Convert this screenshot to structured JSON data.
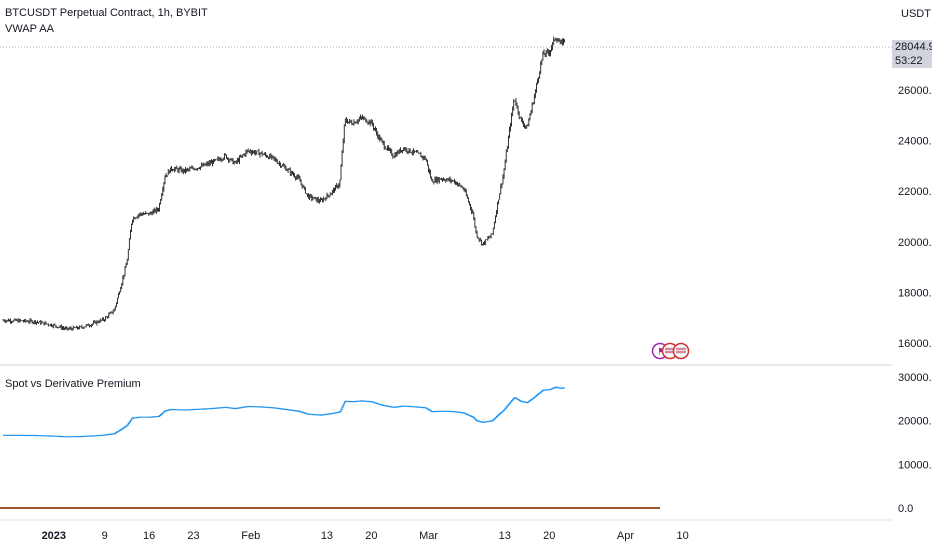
{
  "symbol_title": "BTCUSDT Perpetual Contract, 1h, BYBIT",
  "overlay_indicator": "VWAP AA",
  "currency": "USDT",
  "last_price": "28044.9",
  "countdown": "53:22",
  "colors": {
    "candles": "#000000",
    "premium_line": "#2196f3",
    "zero_line": "#a0522d",
    "grid": "#9598a1",
    "axis_text": "#131722",
    "price_tag_bg": "#d1d4dc"
  },
  "icons": [
    "purple-flag-icon",
    "us-flag-icon",
    "us-flag-icon"
  ],
  "chart_data": [
    {
      "type": "candlestick",
      "title": "BTCUSDT Perpetual Contract, 1h, BYBIT",
      "ylabel": "USDT",
      "ylim": [
        15200,
        29400
      ],
      "yticks": [
        "16000.0",
        "18000.0",
        "20000.0",
        "22000.0",
        "24000.0",
        "26000.0"
      ],
      "xticks": [
        "2023",
        "9",
        "16",
        "23",
        "Feb",
        "13",
        "20",
        "Mar",
        "13",
        "20",
        "Apr",
        "10"
      ],
      "xtick_days": [
        0,
        8,
        15,
        22,
        31,
        43,
        50,
        59,
        71,
        78,
        90,
        99
      ],
      "x_day_range": [
        -8,
        117
      ],
      "series_days": [
        -8,
        80.5
      ],
      "close_path": [
        [
          -8,
          16900
        ],
        [
          -3,
          16850
        ],
        [
          0,
          16700
        ],
        [
          2,
          16550
        ],
        [
          4,
          16600
        ],
        [
          6,
          16750
        ],
        [
          8,
          16950
        ],
        [
          9.5,
          17300
        ],
        [
          10.5,
          18200
        ],
        [
          11.5,
          19200
        ],
        [
          12.3,
          20900
        ],
        [
          13.5,
          21100
        ],
        [
          15,
          21100
        ],
        [
          16.5,
          21300
        ],
        [
          17.5,
          22600
        ],
        [
          18.5,
          22900
        ],
        [
          20.5,
          22800
        ],
        [
          22,
          22900
        ],
        [
          23.5,
          23000
        ],
        [
          25.5,
          23200
        ],
        [
          27,
          23400
        ],
        [
          28.5,
          23100
        ],
        [
          30.5,
          23600
        ],
        [
          32.5,
          23500
        ],
        [
          34.5,
          23300
        ],
        [
          36.5,
          22900
        ],
        [
          38.5,
          22500
        ],
        [
          40,
          21800
        ],
        [
          42,
          21600
        ],
        [
          43.5,
          21900
        ],
        [
          45,
          22300
        ],
        [
          45.8,
          24800
        ],
        [
          47,
          24700
        ],
        [
          48.5,
          24900
        ],
        [
          50,
          24700
        ],
        [
          51,
          24200
        ],
        [
          52,
          23800
        ],
        [
          53.5,
          23400
        ],
        [
          55,
          23700
        ],
        [
          57,
          23500
        ],
        [
          58.5,
          23300
        ],
        [
          59.5,
          22400
        ],
        [
          61,
          22500
        ],
        [
          63,
          22400
        ],
        [
          64.5,
          22100
        ],
        [
          66,
          21100
        ],
        [
          66.5,
          20300
        ],
        [
          67.5,
          19900
        ],
        [
          69,
          20300
        ],
        [
          70,
          21700
        ],
        [
          70.8,
          22700
        ],
        [
          71.5,
          24000
        ],
        [
          72.5,
          25700
        ],
        [
          73.5,
          24800
        ],
        [
          74.5,
          24500
        ],
        [
          75.5,
          25600
        ],
        [
          76.5,
          26800
        ],
        [
          77,
          27400
        ],
        [
          78,
          27500
        ],
        [
          79,
          28100
        ],
        [
          79.8,
          27800
        ],
        [
          80.5,
          28044
        ]
      ],
      "annotation": "28044.9"
    },
    {
      "type": "line",
      "title": "Spot vs Derivative Premium",
      "ylim": [
        -1000,
        31000
      ],
      "yticks": [
        "0.0",
        "10000.0",
        "20000.0",
        "30000.0"
      ],
      "series": [
        {
          "name": "",
          "color": "#2196f3",
          "values": "follows price close path"
        },
        {
          "name": "",
          "color": "#a0522d",
          "values": "constant 0"
        }
      ]
    }
  ]
}
